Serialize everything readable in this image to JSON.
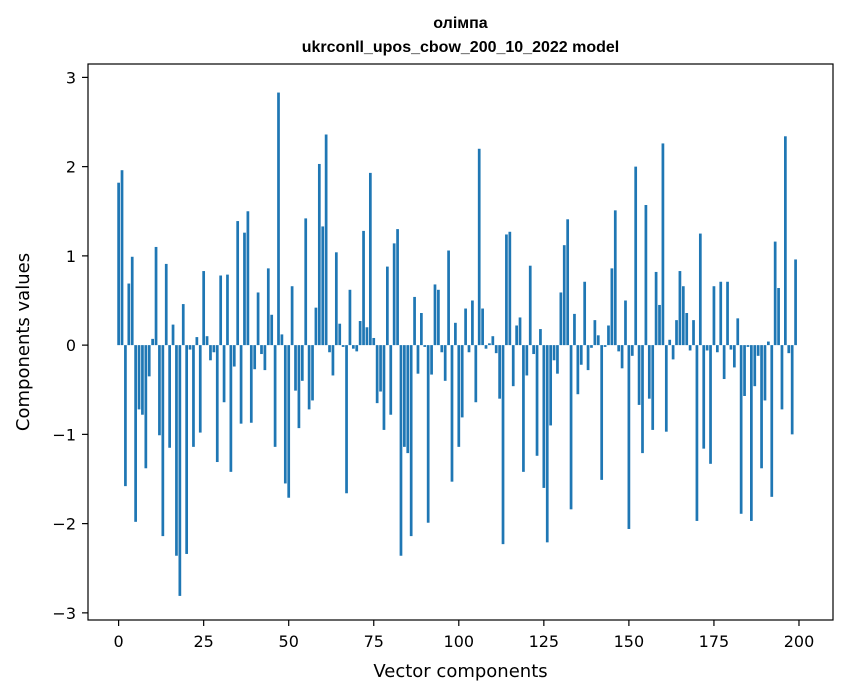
{
  "chart_data": {
    "type": "bar",
    "title": "олімпа",
    "subtitle": "ukrconll_upos_cbow_200_10_2022 model",
    "xlabel": "Vector components",
    "ylabel": "Components values",
    "xlim": [
      -9,
      210
    ],
    "ylim": [
      -3.08,
      3.15
    ],
    "xticks": [
      0,
      25,
      50,
      75,
      100,
      125,
      150,
      175,
      200
    ],
    "xtick_labels": [
      "0",
      "25",
      "50",
      "75",
      "100",
      "125",
      "150",
      "175",
      "200"
    ],
    "yticks": [
      -3,
      -2,
      -1,
      0,
      1,
      2,
      3
    ],
    "ytick_labels": [
      "−3",
      "−2",
      "−1",
      "0",
      "1",
      "2",
      "3"
    ],
    "grid": false,
    "color": "#1f77b4",
    "x": [
      0,
      1,
      2,
      3,
      4,
      5,
      6,
      7,
      8,
      9,
      10,
      11,
      12,
      13,
      14,
      15,
      16,
      17,
      18,
      19,
      20,
      21,
      22,
      23,
      24,
      25,
      26,
      27,
      28,
      29,
      30,
      31,
      32,
      33,
      34,
      35,
      36,
      37,
      38,
      39,
      40,
      41,
      42,
      43,
      44,
      45,
      46,
      47,
      48,
      49,
      50,
      51,
      52,
      53,
      54,
      55,
      56,
      57,
      58,
      59,
      60,
      61,
      62,
      63,
      64,
      65,
      66,
      67,
      68,
      69,
      70,
      71,
      72,
      73,
      74,
      75,
      76,
      77,
      78,
      79,
      80,
      81,
      82,
      83,
      84,
      85,
      86,
      87,
      88,
      89,
      90,
      91,
      92,
      93,
      94,
      95,
      96,
      97,
      98,
      99,
      100,
      101,
      102,
      103,
      104,
      105,
      106,
      107,
      108,
      109,
      110,
      111,
      112,
      113,
      114,
      115,
      116,
      117,
      118,
      119,
      120,
      121,
      122,
      123,
      124,
      125,
      126,
      127,
      128,
      129,
      130,
      131,
      132,
      133,
      134,
      135,
      136,
      137,
      138,
      139,
      140,
      141,
      142,
      143,
      144,
      145,
      146,
      147,
      148,
      149,
      150,
      151,
      152,
      153,
      154,
      155,
      156,
      157,
      158,
      159,
      160,
      161,
      162,
      163,
      164,
      165,
      166,
      167,
      168,
      169,
      170,
      171,
      172,
      173,
      174,
      175,
      176,
      177,
      178,
      179,
      180,
      181,
      182,
      183,
      184,
      185,
      186,
      187,
      188,
      189,
      190,
      191,
      192,
      193,
      194,
      195,
      196,
      197,
      198,
      199
    ],
    "values": [
      1.82,
      1.96,
      -1.58,
      0.69,
      0.99,
      -1.98,
      -0.72,
      -0.78,
      -1.38,
      -0.35,
      0.07,
      1.1,
      -1.01,
      -2.14,
      0.91,
      -1.15,
      0.23,
      -2.36,
      -2.81,
      0.46,
      -2.34,
      -0.05,
      -1.14,
      0.09,
      -0.98,
      0.83,
      0.1,
      -0.17,
      -0.08,
      -1.31,
      0.78,
      -0.64,
      0.79,
      -1.42,
      -0.24,
      1.39,
      -0.88,
      1.26,
      1.5,
      -0.87,
      -0.27,
      0.59,
      -0.1,
      -0.28,
      0.86,
      0.34,
      -1.14,
      2.83,
      0.12,
      -1.55,
      -1.71,
      0.66,
      -0.51,
      -0.93,
      -0.4,
      1.42,
      -0.72,
      -0.62,
      0.42,
      2.03,
      1.33,
      2.36,
      -0.08,
      -0.34,
      1.04,
      0.24,
      -0.02,
      -1.66,
      0.62,
      -0.04,
      -0.07,
      0.27,
      1.28,
      0.2,
      1.93,
      0.08,
      -0.65,
      -0.52,
      -0.95,
      0.88,
      -0.78,
      1.14,
      1.3,
      -2.36,
      -1.14,
      -1.21,
      -2.14,
      0.54,
      -0.32,
      0.36,
      -0.02,
      -1.99,
      -0.33,
      0.68,
      0.62,
      -0.08,
      -0.4,
      1.06,
      -1.53,
      0.25,
      -1.14,
      -0.81,
      0.41,
      -0.08,
      0.5,
      -0.64,
      2.2,
      0.41,
      -0.04,
      0.02,
      0.1,
      -0.09,
      -0.6,
      -2.23,
      1.24,
      1.27,
      -0.46,
      0.22,
      0.31,
      -1.42,
      -0.34,
      0.89,
      -0.1,
      -1.24,
      0.18,
      -1.6,
      -2.21,
      -0.9,
      -0.17,
      -0.32,
      0.59,
      1.12,
      1.41,
      -1.84,
      0.35,
      -0.55,
      -0.22,
      0.71,
      -0.28,
      -0.03,
      0.28,
      0.11,
      -1.51,
      -0.02,
      0.22,
      0.86,
      1.51,
      -0.07,
      -0.26,
      0.5,
      -2.06,
      -0.12,
      2.0,
      -0.67,
      -1.21,
      1.57,
      -0.6,
      -0.95,
      0.82,
      0.45,
      2.26,
      -0.97,
      0.06,
      -0.16,
      0.28,
      0.83,
      0.66,
      0.36,
      -0.06,
      0.28,
      -1.97,
      1.25,
      -1.16,
      -0.06,
      -1.33,
      0.66,
      -0.08,
      0.71,
      -0.38,
      0.71,
      -0.05,
      -0.25,
      0.3,
      -1.89,
      -0.57,
      -0.02,
      -1.97,
      -0.46,
      -0.12,
      -1.38,
      -0.62,
      0.04,
      -1.7,
      1.16,
      0.64,
      -0.72,
      2.34,
      -0.09,
      -1.0,
      0.96
    ]
  }
}
